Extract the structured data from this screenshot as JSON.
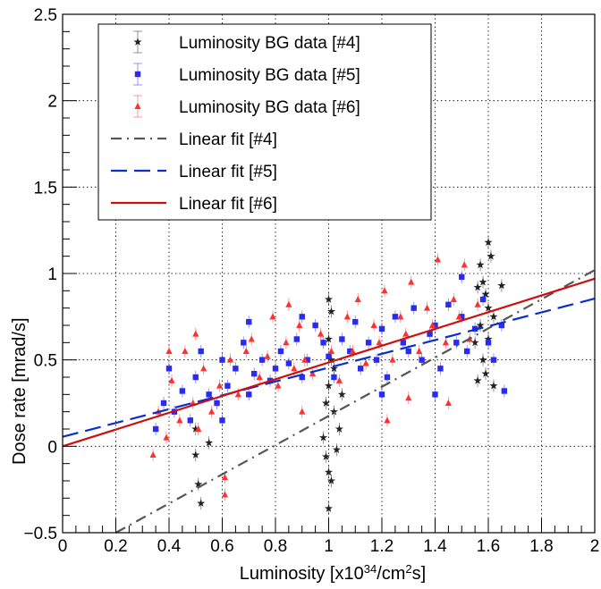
{
  "chart_data": {
    "type": "scatter",
    "title": "",
    "xlabel": "Luminosity [x10",
    "xlabel_sup_exp": "34",
    "xlabel_unit": "/cm",
    "xlabel_sup_sq": "2",
    "xlabel_tail": "s]",
    "ylabel": "Dose rate [mrad/s]",
    "xlim": [
      0,
      2
    ],
    "ylim": [
      -0.5,
      2.5
    ],
    "x_ticks": [
      "0",
      "0.2",
      "0.4",
      "0.6",
      "0.8",
      "1",
      "1.2",
      "1.4",
      "1.6",
      "1.8",
      "2"
    ],
    "y_ticks": [
      "−0.5",
      "0",
      "0.5",
      "1",
      "1.5",
      "2",
      "2.5"
    ],
    "grid": true,
    "legend_position": "top-left",
    "series": [
      {
        "name": "Luminosity BG data [#4]",
        "kind": "points",
        "marker": "star",
        "color": "#222222",
        "points": [
          [
            0.5,
            -0.05
          ],
          [
            0.51,
            -0.22
          ],
          [
            0.52,
            -0.33
          ],
          [
            0.55,
            0.02
          ],
          [
            0.5,
            0.1
          ],
          [
            0.98,
            0.05
          ],
          [
            0.99,
            -0.06
          ],
          [
            1.0,
            -0.15
          ],
          [
            1.01,
            -0.2
          ],
          [
            1.0,
            -0.36
          ],
          [
            0.99,
            0.25
          ],
          [
            1.0,
            0.35
          ],
          [
            1.01,
            0.5
          ],
          [
            1.02,
            0.2
          ],
          [
            1.03,
            -0.02
          ],
          [
            1.04,
            0.1
          ],
          [
            1.0,
            0.85
          ],
          [
            1.01,
            0.78
          ],
          [
            1.05,
            0.3
          ],
          [
            1.0,
            0.62
          ],
          [
            1.02,
            0.45
          ],
          [
            1.56,
            0.92
          ],
          [
            1.57,
            0.7
          ],
          [
            1.58,
            0.5
          ],
          [
            1.59,
            0.42
          ],
          [
            1.6,
            0.8
          ],
          [
            1.6,
            1.18
          ],
          [
            1.61,
            1.1
          ],
          [
            1.57,
            1.05
          ],
          [
            1.55,
            0.6
          ],
          [
            1.62,
            0.75
          ],
          [
            1.56,
            0.38
          ],
          [
            1.59,
            0.88
          ],
          [
            1.6,
            0.62
          ],
          [
            1.65,
            0.93
          ],
          [
            1.62,
            0.35
          ],
          [
            1.58,
            0.95
          ]
        ]
      },
      {
        "name": "Luminosity BG data [#5]",
        "kind": "points",
        "marker": "square",
        "color": "#2b2bf0",
        "points": [
          [
            0.35,
            0.1
          ],
          [
            0.38,
            0.25
          ],
          [
            0.4,
            0.45
          ],
          [
            0.42,
            0.2
          ],
          [
            0.45,
            0.32
          ],
          [
            0.48,
            0.15
          ],
          [
            0.5,
            0.4
          ],
          [
            0.52,
            0.55
          ],
          [
            0.55,
            0.3
          ],
          [
            0.58,
            0.25
          ],
          [
            0.6,
            0.5
          ],
          [
            0.62,
            0.35
          ],
          [
            0.65,
            0.45
          ],
          [
            0.68,
            0.6
          ],
          [
            0.7,
            0.3
          ],
          [
            0.72,
            0.42
          ],
          [
            0.75,
            0.5
          ],
          [
            0.78,
            0.38
          ],
          [
            0.8,
            0.45
          ],
          [
            0.82,
            0.55
          ],
          [
            0.85,
            0.48
          ],
          [
            0.88,
            0.62
          ],
          [
            0.9,
            0.4
          ],
          [
            0.92,
            0.5
          ],
          [
            0.95,
            0.7
          ],
          [
            0.98,
            0.6
          ],
          [
            1.0,
            0.52
          ],
          [
            1.02,
            0.4
          ],
          [
            1.05,
            0.62
          ],
          [
            1.08,
            0.55
          ],
          [
            1.1,
            0.72
          ],
          [
            1.12,
            0.45
          ],
          [
            1.15,
            0.6
          ],
          [
            1.18,
            0.5
          ],
          [
            1.2,
            0.68
          ],
          [
            1.22,
            0.4
          ],
          [
            1.25,
            0.75
          ],
          [
            1.28,
            0.6
          ],
          [
            1.3,
            0.55
          ],
          [
            1.32,
            0.8
          ],
          [
            1.35,
            0.5
          ],
          [
            1.38,
            0.65
          ],
          [
            1.4,
            0.7
          ],
          [
            1.42,
            0.45
          ],
          [
            1.45,
            0.82
          ],
          [
            1.48,
            0.6
          ],
          [
            1.5,
            0.75
          ],
          [
            1.52,
            0.55
          ],
          [
            1.55,
            0.68
          ],
          [
            1.58,
            0.85
          ],
          [
            1.6,
            0.6
          ],
          [
            1.62,
            0.5
          ],
          [
            1.65,
            0.7
          ],
          [
            1.66,
            0.32
          ],
          [
            0.6,
            0.15
          ],
          [
            0.7,
            0.72
          ],
          [
            0.9,
            0.75
          ],
          [
            1.2,
            0.3
          ],
          [
            1.4,
            0.3
          ],
          [
            1.5,
            0.98
          ]
        ]
      },
      {
        "name": "Luminosity BG data [#6]",
        "kind": "points",
        "marker": "triangle",
        "color": "#ff3030",
        "points": [
          [
            0.34,
            -0.05
          ],
          [
            0.36,
            0.2
          ],
          [
            0.39,
            0.05
          ],
          [
            0.41,
            0.38
          ],
          [
            0.44,
            0.15
          ],
          [
            0.46,
            0.55
          ],
          [
            0.49,
            0.25
          ],
          [
            0.51,
            0.1
          ],
          [
            0.53,
            0.45
          ],
          [
            0.56,
            0.2
          ],
          [
            0.59,
            0.35
          ],
          [
            0.61,
            -0.18
          ],
          [
            0.61,
            -0.28
          ],
          [
            0.63,
            0.5
          ],
          [
            0.66,
            0.3
          ],
          [
            0.69,
            0.55
          ],
          [
            0.71,
            0.62
          ],
          [
            0.74,
            0.4
          ],
          [
            0.77,
            0.52
          ],
          [
            0.79,
            0.75
          ],
          [
            0.81,
            0.35
          ],
          [
            0.84,
            0.6
          ],
          [
            0.87,
            0.45
          ],
          [
            0.89,
            0.7
          ],
          [
            0.91,
            0.5
          ],
          [
            0.94,
            0.42
          ],
          [
            0.97,
            0.65
          ],
          [
            1.01,
            0.55
          ],
          [
            1.04,
            0.38
          ],
          [
            1.07,
            0.75
          ],
          [
            1.09,
            0.55
          ],
          [
            1.11,
            0.85
          ],
          [
            1.14,
            0.48
          ],
          [
            1.17,
            0.7
          ],
          [
            1.19,
            0.6
          ],
          [
            1.21,
            0.9
          ],
          [
            1.24,
            0.5
          ],
          [
            1.27,
            0.75
          ],
          [
            1.29,
            0.65
          ],
          [
            1.31,
            0.95
          ],
          [
            1.34,
            0.55
          ],
          [
            1.37,
            0.8
          ],
          [
            1.39,
            0.7
          ],
          [
            1.41,
            1.08
          ],
          [
            1.44,
            0.6
          ],
          [
            1.47,
            0.85
          ],
          [
            1.49,
            0.75
          ],
          [
            1.51,
            1.05
          ],
          [
            1.53,
            0.62
          ],
          [
            1.56,
            0.82
          ],
          [
            0.9,
            0.2
          ],
          [
            1.22,
            0.15
          ],
          [
            1.45,
            0.25
          ],
          [
            1.3,
            0.28
          ],
          [
            0.85,
            0.82
          ],
          [
            0.4,
            0.55
          ],
          [
            0.5,
            0.65
          ]
        ]
      },
      {
        "name": "Linear fit [#4]",
        "kind": "line",
        "dash": "dashdot",
        "color": "#555555",
        "x": [
          0.2,
          2.0
        ],
        "y": [
          -0.5,
          1.02
        ]
      },
      {
        "name": "Linear fit [#5]",
        "kind": "line",
        "dash": "dashed",
        "color": "#0a2fd0",
        "x": [
          0.0,
          2.0
        ],
        "y": [
          0.055,
          0.855
        ]
      },
      {
        "name": "Linear fit [#6]",
        "kind": "line",
        "dash": "solid",
        "color": "#cc1010",
        "x": [
          0.0,
          2.0
        ],
        "y": [
          0.0,
          0.97
        ]
      }
    ]
  }
}
